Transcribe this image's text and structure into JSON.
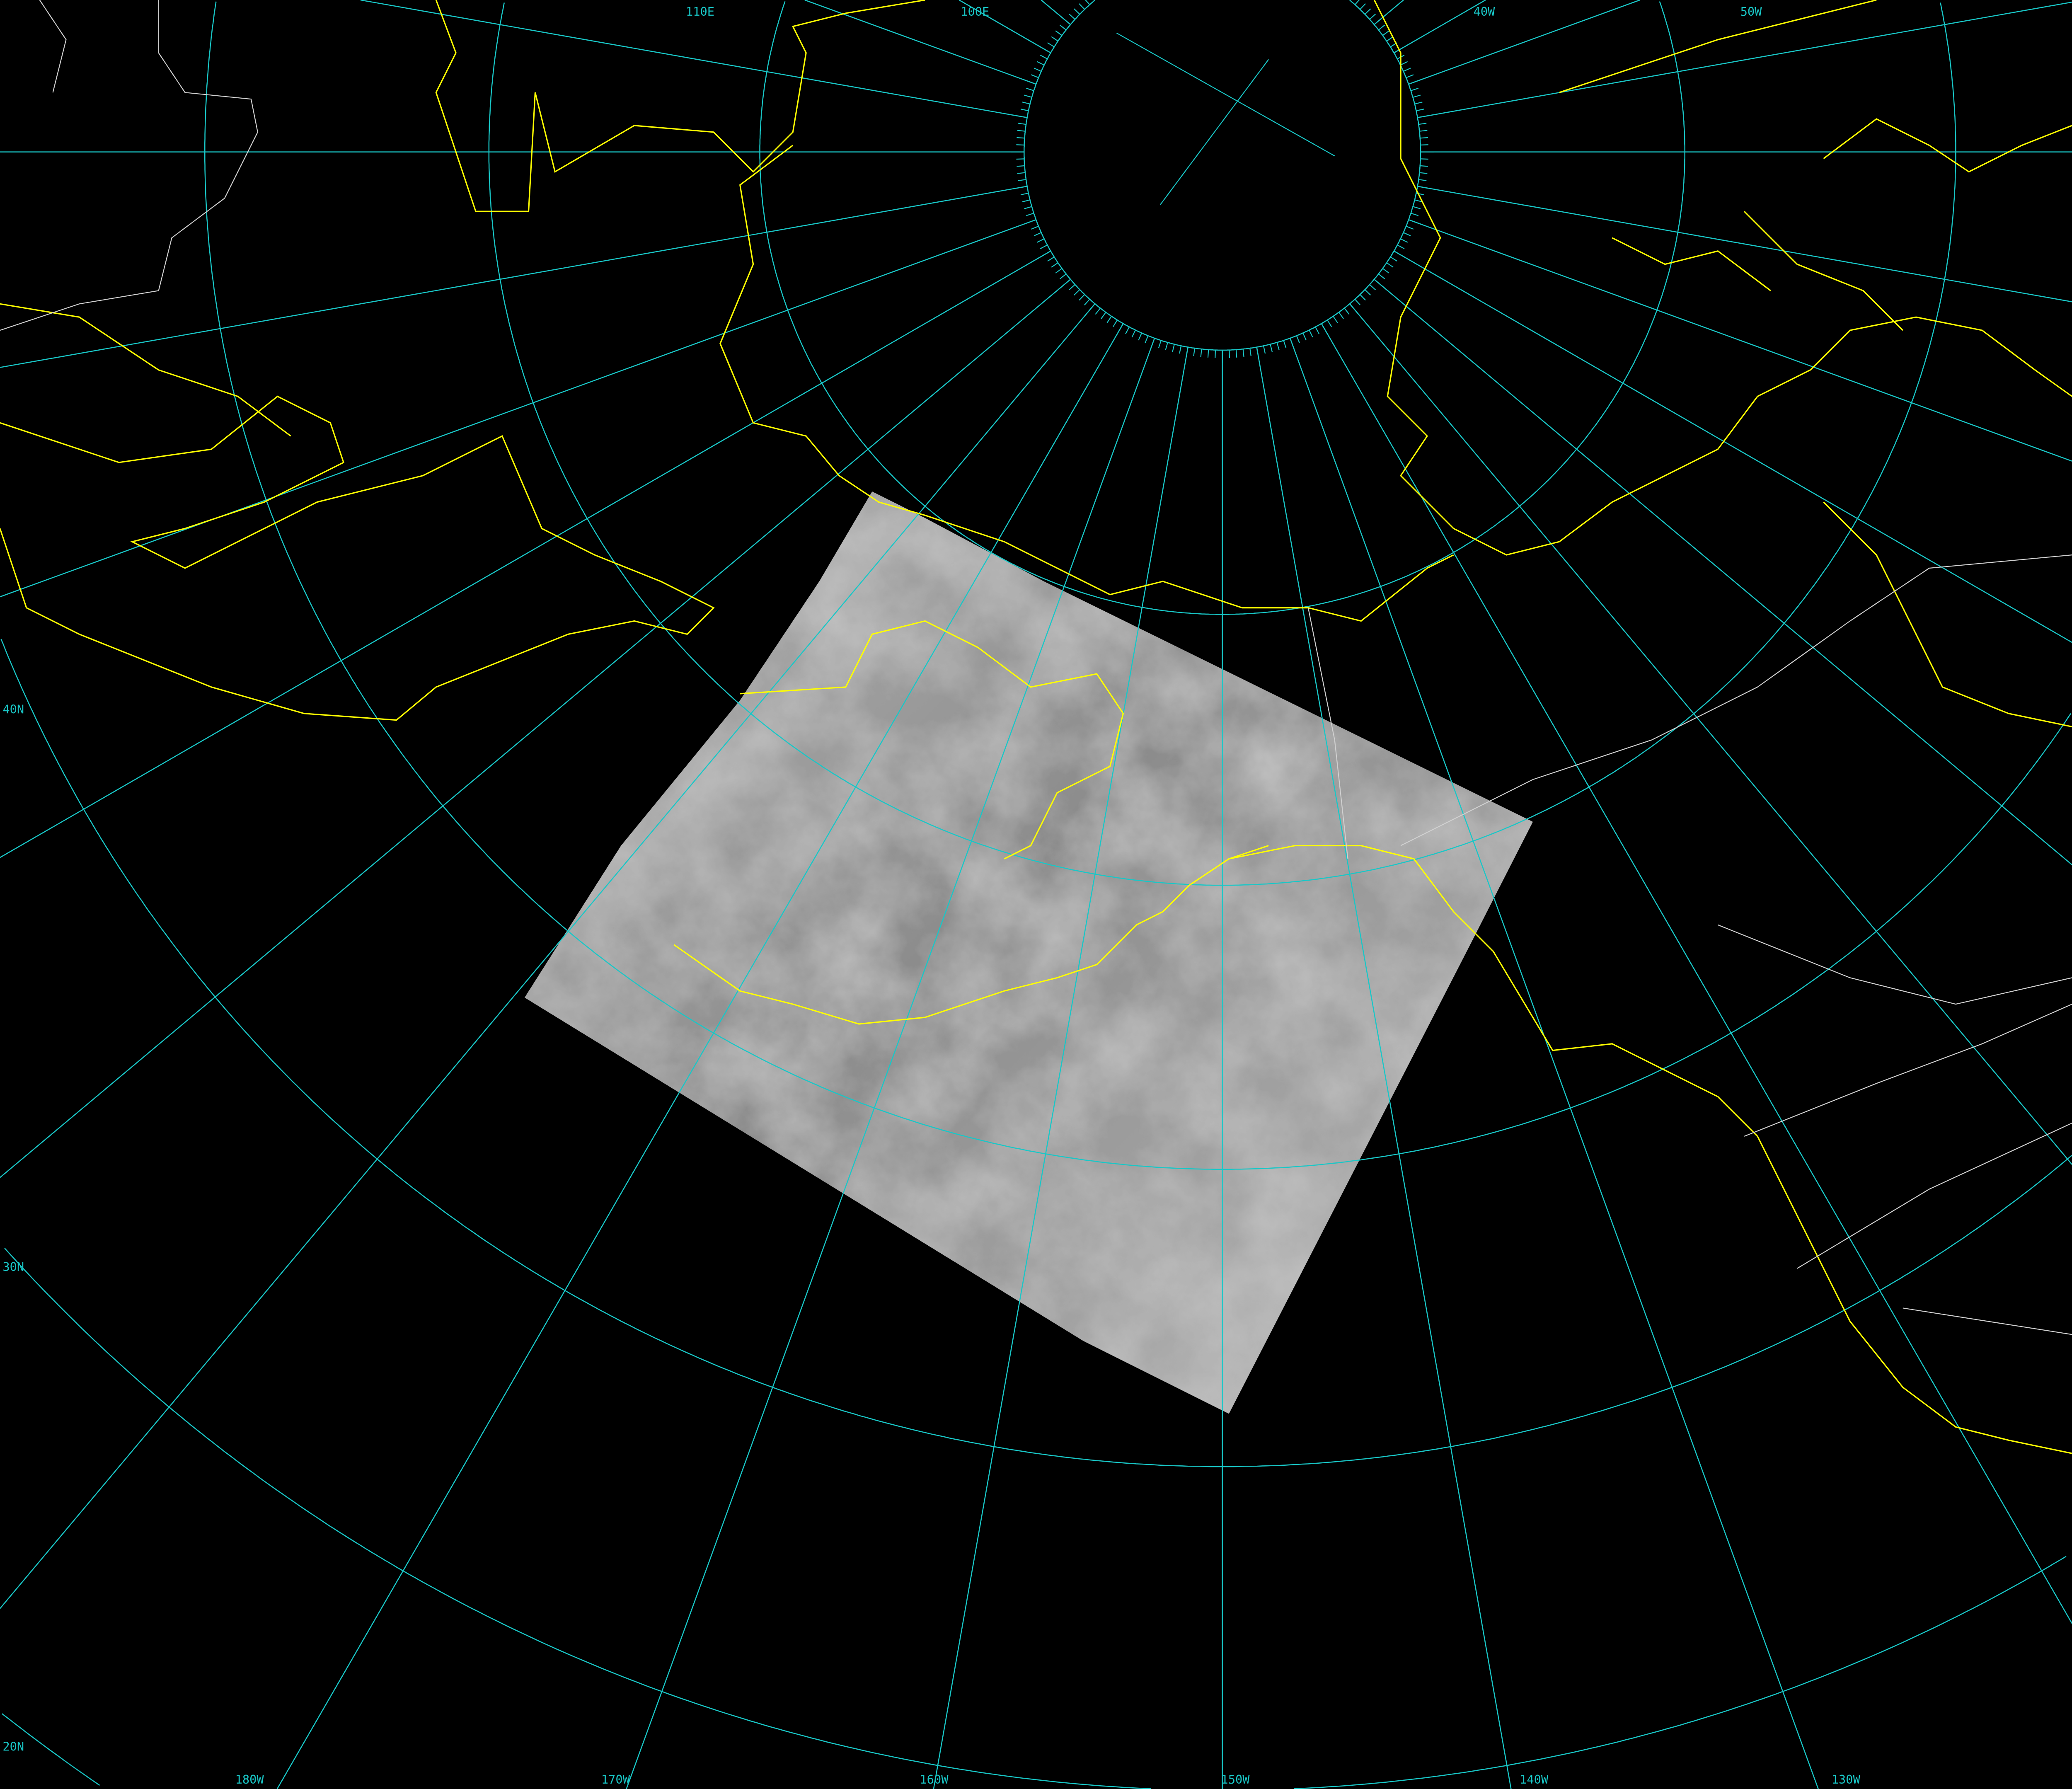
{
  "map": {
    "projection": "polar stereographic (north pole)",
    "colors": {
      "background": "#000000",
      "graticule": "#19c7c7",
      "coastline": "#ffff00",
      "political_border": "#d0d0d0",
      "satellite_imagery": "#9a9a9a"
    },
    "graticule_labels": {
      "top": [
        "110E",
        "100E",
        "40W",
        "50W"
      ],
      "left": [
        "40N",
        "30N",
        "20N"
      ],
      "bottom": [
        "180W",
        "170W",
        "160W",
        "150W",
        "140W",
        "130W"
      ]
    },
    "meridian_step_deg": 10,
    "center_meridian": "150W",
    "imagery": "infrared satellite image (gray cloud field) over Bering Sea / Alaska / NE Pacific"
  }
}
